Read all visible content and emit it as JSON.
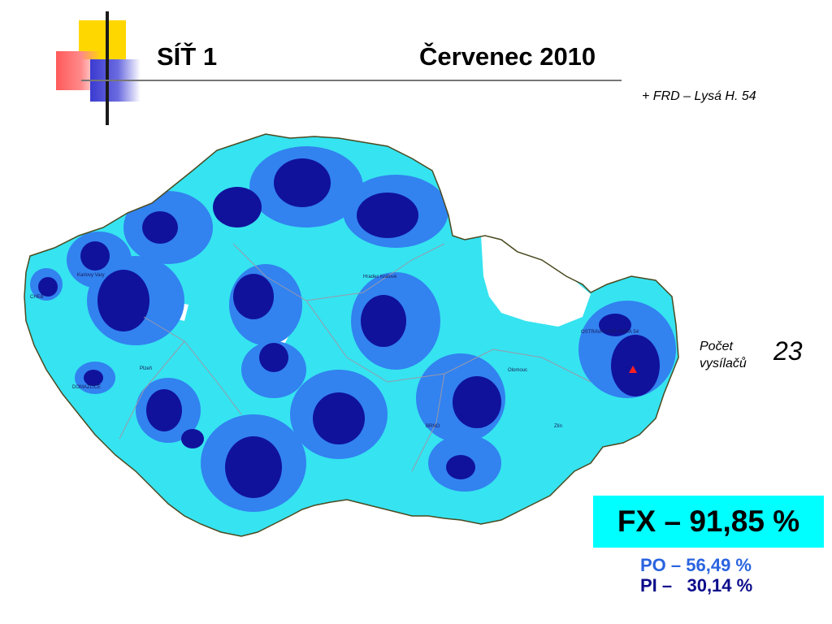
{
  "header": {
    "title_left": "SÍŤ 1",
    "title_right": "Červenec 2010"
  },
  "note": "+ FRD – Lysá H. 54",
  "map": {
    "colors": {
      "light_coverage": "#36e3f0",
      "medium_coverage": "#3282f0",
      "strong_coverage": "#10129c",
      "uncovered": "#ffffff",
      "border": "#4a4a20",
      "region_lines": "#9999aa"
    },
    "city_labels": [
      "CHEB",
      "Karlovy Vary",
      "Plzeň",
      "DOMAŽLICE",
      "Hradec Králové",
      "Olomouc",
      "BRNO",
      "Zlín",
      "OSTRAVA LYSÁ HORA 54"
    ]
  },
  "stats": {
    "transmitter_count_label_line1": "Počet",
    "transmitter_count_label_line2": "vysílačů",
    "transmitter_count": "23",
    "fx": "FX – 91,85 %",
    "po": "PO – 56,49 %",
    "pi": "PI –   30,14 %"
  }
}
